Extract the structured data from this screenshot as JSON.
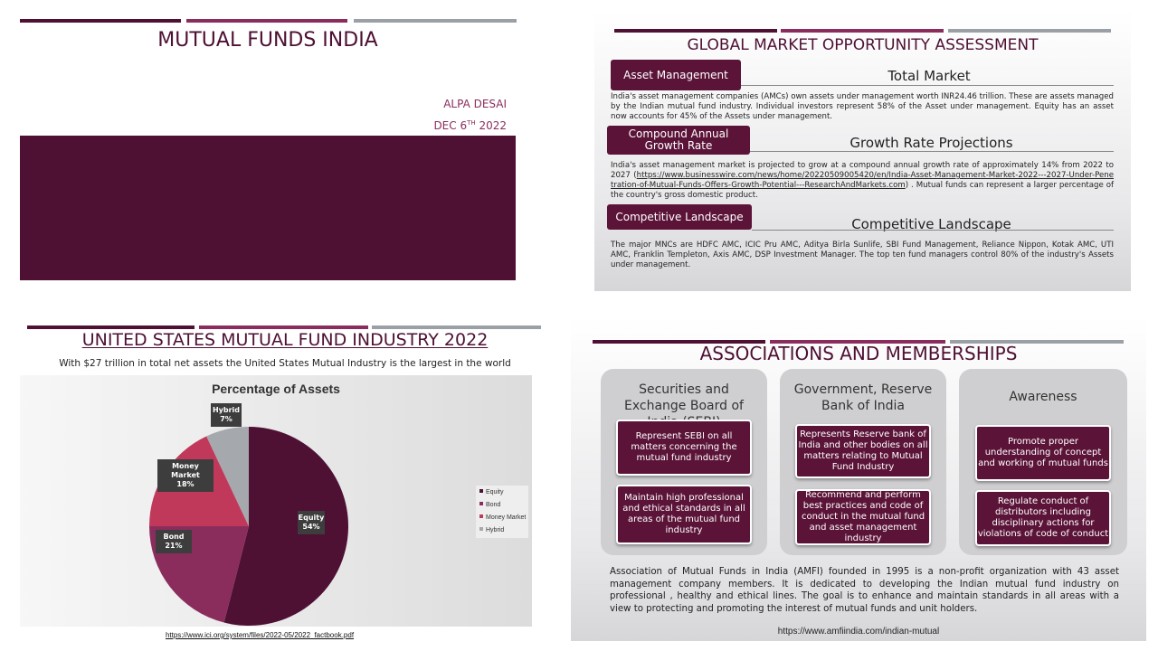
{
  "colors": {
    "dark": "#4e1033",
    "mid": "#8a2d5d",
    "gray": "#9aa0a6"
  },
  "slide1": {
    "title": "MUTUAL FUNDS INDIA",
    "author": "ALPA DESAI",
    "date_prefix": "DEC 6",
    "date_sup": "TH",
    "date_suffix": " 2022"
  },
  "slide2": {
    "title": "GLOBAL MARKET OPPORTUNITY ASSESSMENT",
    "sections": [
      {
        "tag": "Asset Management",
        "heading": "Total Market",
        "text": "India's asset management companies (AMCs) own assets under management worth INR24.46 trillion.  These are assets managed by the Indian mutual fund industry.  Individual investors represent 58% of the Asset under management. Equity has an asset now accounts for 45% of the Assets under management."
      },
      {
        "tag": "Compound Annual Growth Rate",
        "heading": "Growth Rate Projections",
        "text_before": "India's asset management market is projected to grow at a compound annual growth rate of approximately 14% from 2022 to 2027 (",
        "link": "https://www.businesswire.com/news/home/20220509005420/en/India-Asset-Management-Market-2022---2027-Under-Penetration-of-Mutual-Funds-Offers-Growth-Potential---ResearchAndMarkets.com",
        "text_after": ") . Mutual funds can represent a larger percentage of the country's gross domestic product."
      },
      {
        "tag": "Competitive Landscape",
        "heading": "Competitive Landscape",
        "text": "The major MNCs are HDFC AMC, ICIC Pru AMC, Aditya Birla Sunlife, SBI Fund Management, Reliance Nippon, Kotak AMC, UTI AMC, Franklin Templeton, Axis AMC, DSP Investment Manager. The top ten fund managers control 80% of the industry's Assets under management."
      }
    ]
  },
  "slide3": {
    "title": "UNITED STATES MUTUAL FUND INDUSTRY 2022",
    "subtitle": "With $27 trillion in total net assets the United States Mutual Industry is the largest in the world",
    "source": "https://www.ici.org/system/files/2022-05/2022_factbook.pdf"
  },
  "chart_data": {
    "type": "pie",
    "title": "Percentage of Assets",
    "categories": [
      "Equity",
      "Bond",
      "Money Market",
      "Hybrid"
    ],
    "values": [
      54,
      21,
      18,
      7
    ],
    "labels": [
      "54%",
      "21%",
      "18%",
      "7%"
    ],
    "colors": [
      "#4e1033",
      "#8a2d5d",
      "#c0395a",
      "#a5a8ad"
    ],
    "legend": "right"
  },
  "slide4": {
    "title": "ASSOCIATIONS AND MEMBERSHIPS",
    "columns": [
      {
        "heading": "Securities and Exchange Board of India (SEBI)",
        "boxes": [
          "Represent SEBI on all matters concerning the mutual fund industry",
          "Maintain high professional and ethical standards in all areas of the mutual fund industry"
        ]
      },
      {
        "heading": "Government, Reserve Bank of India",
        "boxes": [
          "Represents Reserve bank of India and other bodies on all matters relating to Mutual Fund Industry",
          "Recommend and perform best practices and code of conduct in the mutual fund and asset management industry"
        ]
      },
      {
        "heading": "Awareness",
        "boxes": [
          "Promote proper understanding of concept and working of mutual funds",
          "Regulate conduct of distributors including disciplinary actions for violations of code of conduct"
        ]
      }
    ],
    "paragraph": "Association of Mutual Funds in India (AMFI)  founded in 1995 is a non-profit organization with 43 asset management company members. It is dedicated to developing the Indian mutual fund industry on professional , healthy and ethical lines. The goal is to enhance and maintain standards in all areas with a view to protecting and promoting the interest of mutual funds and unit holders.",
    "link": "https://www.amfiindia.com/indian-mutual"
  }
}
